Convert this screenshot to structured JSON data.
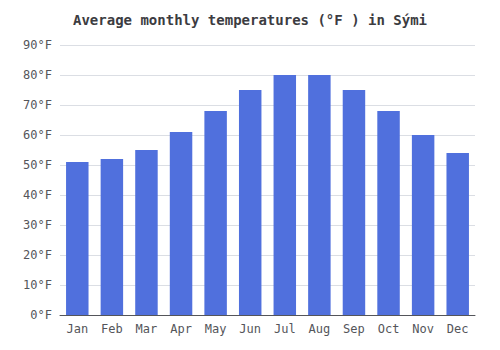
{
  "chart_data": {
    "type": "bar",
    "title": "Average monthly temperatures (°F ) in Sými",
    "categories": [
      "Jan",
      "Feb",
      "Mar",
      "Apr",
      "May",
      "Jun",
      "Jul",
      "Aug",
      "Sep",
      "Oct",
      "Nov",
      "Dec"
    ],
    "values": [
      51,
      52,
      55,
      61,
      68,
      75,
      80,
      80,
      75,
      68,
      60,
      54
    ],
    "ylim": [
      0,
      90
    ],
    "yticks": [
      {
        "value": 0,
        "label": "0°F"
      },
      {
        "value": 10,
        "label": "10°F"
      },
      {
        "value": 20,
        "label": "20°F"
      },
      {
        "value": 30,
        "label": "30°F"
      },
      {
        "value": 40,
        "label": "40°F"
      },
      {
        "value": 50,
        "label": "50°F"
      },
      {
        "value": 60,
        "label": "60°F"
      },
      {
        "value": 70,
        "label": "70°F"
      },
      {
        "value": 80,
        "label": "80°F"
      },
      {
        "value": 90,
        "label": "90°F"
      }
    ],
    "grid": true
  }
}
